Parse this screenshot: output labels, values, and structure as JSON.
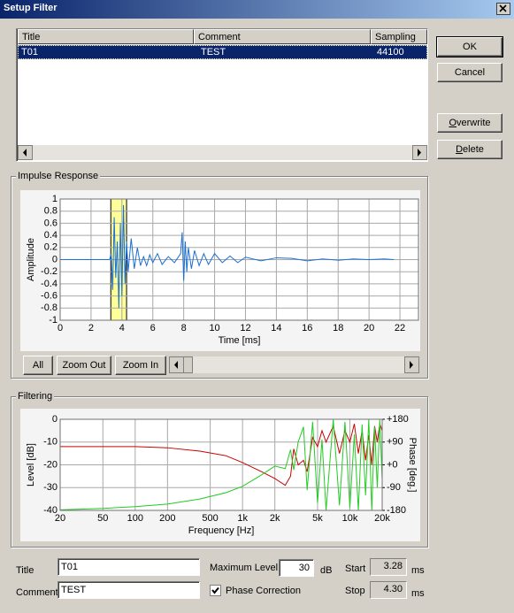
{
  "window": {
    "title": "Setup Filter"
  },
  "list": {
    "columns": [
      "Title",
      "Comment",
      "Sampling"
    ],
    "rows": [
      [
        "T01",
        "TEST",
        44100
      ]
    ]
  },
  "buttons": {
    "ok": "OK",
    "cancel": "Cancel",
    "overwrite": "Overwrite",
    "delete": "Delete",
    "all": "All",
    "zoom_out": "Zoom Out",
    "zoom_in": "Zoom In"
  },
  "chart_data": [
    {
      "type": "line",
      "title": "Impulse Response",
      "xlabel": "Time [ms]",
      "ylabel": "Amplitude",
      "x": [
        0,
        3.2,
        3.3,
        3.4,
        3.5,
        3.6,
        3.7,
        3.8,
        3.9,
        4.0,
        4.1,
        4.2,
        4.3,
        4.4,
        4.6,
        4.8,
        5.0,
        5.2,
        5.4,
        5.6,
        5.8,
        6.0,
        6.3,
        6.6,
        7.0,
        7.4,
        7.8,
        7.9,
        8.0,
        8.1,
        8.2,
        8.3,
        8.5,
        8.7,
        9.0,
        9.3,
        9.6,
        10,
        10.5,
        11,
        11.5,
        12,
        13,
        14,
        15,
        16,
        17,
        18,
        19,
        20,
        21,
        21.6
      ],
      "series": [
        {
          "name": "Impulse",
          "color": "#1a6fd6",
          "values": [
            0,
            0,
            0.1,
            -0.5,
            0.7,
            -0.3,
            0.3,
            -0.8,
            0.6,
            -0.6,
            0.9,
            -0.4,
            0.3,
            -0.2,
            0.35,
            -0.15,
            0.2,
            -0.1,
            0.05,
            -0.1,
            0.08,
            -0.05,
            0.1,
            -0.08,
            0.05,
            -0.05,
            0.1,
            0.45,
            -0.35,
            0.3,
            -0.2,
            0.2,
            -0.15,
            0.15,
            -0.1,
            0.1,
            -0.08,
            0.1,
            -0.05,
            0.06,
            -0.05,
            0.04,
            -0.02,
            0.03,
            0.02,
            -0.02,
            0.01,
            -0.01,
            0.01,
            0,
            0.01,
            0
          ]
        }
      ],
      "xlim": [
        0,
        23.2
      ],
      "ylim": [
        -1,
        1
      ],
      "xticks": [
        0,
        2,
        4,
        6,
        8,
        10,
        12,
        14,
        16,
        18,
        20,
        22
      ],
      "yticks": [
        -1,
        -0.8,
        -0.6,
        -0.4,
        -0.2,
        0,
        0.2,
        0.4,
        0.6,
        0.8,
        1
      ],
      "grid": true,
      "highlight_color": "#ffff99"
    },
    {
      "type": "line",
      "title": "Filtering",
      "xlabel": "Frequency [Hz]",
      "ylabel": "Level [dB]",
      "y2label": "Phase [deg.]",
      "xscale": "log",
      "x": [
        20,
        50,
        100,
        200,
        400,
        700,
        1000,
        1500,
        2000,
        2500,
        2800,
        3000,
        3300,
        3700,
        4000,
        4500,
        5000,
        5500,
        6000,
        7000,
        8000,
        9000,
        10000,
        11000,
        12000,
        13000,
        14000,
        15000,
        16000,
        17000,
        18000,
        19000,
        20000
      ],
      "series": [
        {
          "name": "Level",
          "color": "#cc0000",
          "values": [
            -12,
            -12,
            -12,
            -12.5,
            -14,
            -16,
            -19,
            -23,
            -26,
            -29,
            -25,
            -13,
            -20,
            -18,
            -23,
            -8,
            -12,
            -5,
            -10,
            -3,
            -15,
            -5,
            -10,
            -2,
            -15,
            -5,
            -18,
            -7,
            -20,
            -3,
            -10,
            -2,
            -5
          ]
        },
        {
          "name": "Phase",
          "color": "#22cc22",
          "axis": "y2",
          "values": [
            -178,
            -172,
            -165,
            -155,
            -135,
            -110,
            -85,
            -40,
            -5,
            -15,
            60,
            -20,
            90,
            150,
            -100,
            170,
            -150,
            100,
            -180,
            180,
            -160,
            170,
            -170,
            120,
            -180,
            160,
            -120,
            180,
            -180,
            150,
            -90,
            180,
            -60
          ]
        }
      ],
      "xlim": [
        20,
        20000
      ],
      "ylim": [
        -40,
        0
      ],
      "y2lim": [
        -180,
        180
      ],
      "xticks": [
        20,
        50,
        100,
        200,
        500,
        {
          "value": 1000,
          "label": "1k"
        },
        {
          "value": 2000,
          "label": "2k"
        },
        {
          "value": 5000,
          "label": "5k"
        },
        {
          "value": 10000,
          "label": "10k"
        },
        {
          "value": 20000,
          "label": "20k"
        }
      ],
      "yticks": [
        0,
        -10,
        -20,
        -30,
        -40
      ],
      "y2ticks": [
        {
          "value": 180,
          "label": "+180"
        },
        {
          "value": 90,
          "label": "+90"
        },
        {
          "value": 0,
          "label": "+0"
        },
        -90,
        -180
      ],
      "grid": true
    }
  ],
  "form": {
    "title_label": "Title",
    "title_value": "T01",
    "comment_label": "Comment",
    "comment_value": "TEST",
    "max_level_label": "Maximum Level",
    "max_level": 30,
    "max_level_unit": "dB",
    "phase_correction": {
      "label": "Phase Correction",
      "checked": true
    },
    "start_label": "Start",
    "start": {
      "value": 3.28,
      "label": "3.28"
    },
    "start_unit": "ms",
    "stop_label": "Stop",
    "stop": {
      "value": 4.3,
      "label": "4.30"
    },
    "stop_unit": "ms"
  }
}
